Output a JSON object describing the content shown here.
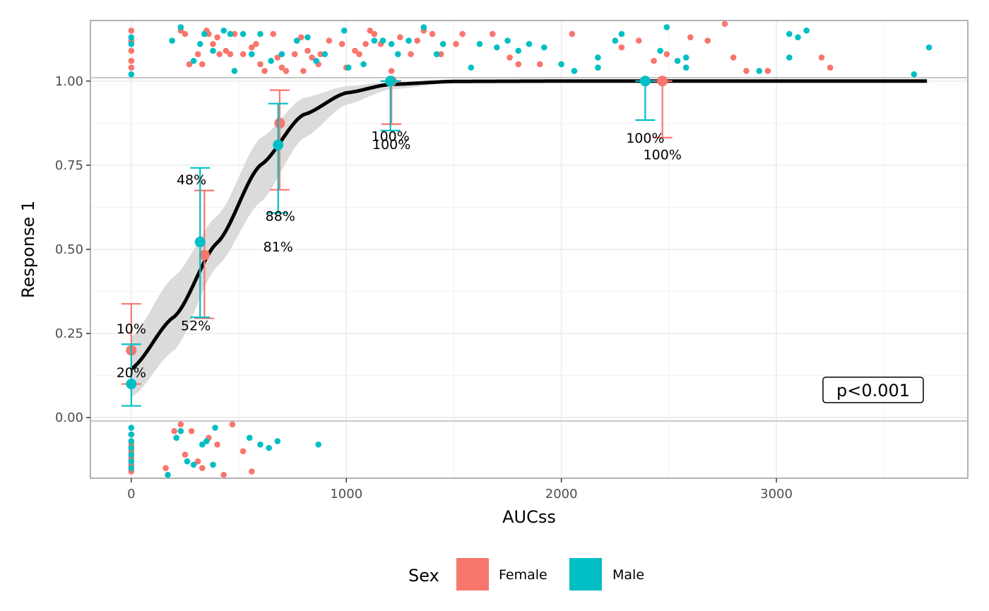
{
  "chart_data": {
    "type": "scatter",
    "xlabel": "AUCss",
    "ylabel": "Response 1",
    "x_ticks": [
      0,
      1000,
      2000,
      3000
    ],
    "x_tick_labels": [
      "0",
      "1000",
      "2000",
      "3000"
    ],
    "y_ticks": [
      0,
      0.25,
      0.5,
      0.75,
      1
    ],
    "y_tick_labels": [
      "0.00",
      "0.25",
      "0.50",
      "0.75",
      "1.00"
    ],
    "xlim": [
      -190,
      3890
    ],
    "ylim": [
      -0.18,
      1.18
    ],
    "grid": true,
    "legend": {
      "title": "Sex",
      "position": "bottom",
      "entries": [
        "Female",
        "Male"
      ]
    },
    "colors": {
      "Female": "#F8766D",
      "Male": "#00BFC4",
      "fit": "#000000",
      "band": "#D9D9D9"
    },
    "annotation": "p<0.001",
    "logistic_fit": {
      "x": [
        0,
        200,
        400,
        600,
        800,
        1000,
        1200,
        1500,
        2000,
        2500,
        3000,
        3700
      ],
      "y": [
        0.145,
        0.3,
        0.52,
        0.75,
        0.9,
        0.965,
        0.99,
        0.999,
        1,
        1,
        1,
        1
      ],
      "ci_low": [
        0.06,
        0.2,
        0.45,
        0.64,
        0.83,
        0.93,
        0.975,
        0.995,
        1,
        1,
        1,
        1
      ],
      "ci_high": [
        0.24,
        0.42,
        0.6,
        0.83,
        0.95,
        0.985,
        0.997,
        1,
        1,
        1,
        1,
        1
      ]
    },
    "bin_summaries": [
      {
        "sex": "Female",
        "x": 0,
        "y": 0.2,
        "ci": [
          0.1,
          0.338
        ],
        "label": "20%"
      },
      {
        "sex": "Male",
        "x": 0,
        "y": 0.1,
        "ci": [
          0.035,
          0.218
        ],
        "label": "10%"
      },
      {
        "sex": "Female",
        "x": 340,
        "y": 0.483,
        "ci": [
          0.295,
          0.675
        ],
        "label": "48%"
      },
      {
        "sex": "Male",
        "x": 320,
        "y": 0.522,
        "ci": [
          0.298,
          0.742
        ],
        "label": "52%"
      },
      {
        "sex": "Female",
        "x": 690,
        "y": 0.875,
        "ci": [
          0.677,
          0.973
        ],
        "label": "88%"
      },
      {
        "sex": "Male",
        "x": 683,
        "y": 0.81,
        "ci": [
          0.608,
          0.933
        ],
        "label": "81%"
      },
      {
        "sex": "Female",
        "x": 1210,
        "y": 1.0,
        "ci": [
          0.872,
          1.0
        ],
        "label": "100%"
      },
      {
        "sex": "Male",
        "x": 1205,
        "y": 1.0,
        "ci": [
          0.853,
          1.0
        ],
        "label": "100%"
      },
      {
        "sex": "Female",
        "x": 2470,
        "y": 1.0,
        "ci": [
          0.832,
          1.0
        ],
        "label": "100%"
      },
      {
        "sex": "Male",
        "x": 2390,
        "y": 1.0,
        "ci": [
          0.884,
          1.0
        ],
        "label": "100%"
      }
    ],
    "raw_points": {
      "responders": {
        "Female": [
          [
            0,
            1.04
          ],
          [
            0,
            1.06
          ],
          [
            0,
            1.09
          ],
          [
            0,
            1.12
          ],
          [
            0,
            1.15
          ],
          [
            230,
            1.15
          ],
          [
            250,
            1.14
          ],
          [
            270,
            1.05
          ],
          [
            310,
            1.08
          ],
          [
            330,
            1.05
          ],
          [
            350,
            1.15
          ],
          [
            360,
            1.14
          ],
          [
            380,
            1.11
          ],
          [
            400,
            1.13
          ],
          [
            410,
            1.08
          ],
          [
            440,
            1.09
          ],
          [
            460,
            1.08
          ],
          [
            480,
            1.14
          ],
          [
            520,
            1.08
          ],
          [
            560,
            1.1
          ],
          [
            580,
            1.11
          ],
          [
            600,
            1.05
          ],
          [
            620,
            1.03
          ],
          [
            660,
            1.14
          ],
          [
            680,
            1.07
          ],
          [
            700,
            1.04
          ],
          [
            720,
            1.03
          ],
          [
            760,
            1.08
          ],
          [
            790,
            1.13
          ],
          [
            800,
            1.03
          ],
          [
            820,
            1.09
          ],
          [
            840,
            1.07
          ],
          [
            870,
            1.05
          ],
          [
            880,
            1.08
          ],
          [
            920,
            1.12
          ],
          [
            980,
            1.11
          ],
          [
            1000,
            1.04
          ],
          [
            1040,
            1.09
          ],
          [
            1060,
            1.08
          ],
          [
            1090,
            1.11
          ],
          [
            1110,
            1.15
          ],
          [
            1130,
            1.14
          ],
          [
            1160,
            1.11
          ],
          [
            1210,
            1.03
          ],
          [
            1250,
            1.13
          ],
          [
            1300,
            1.08
          ],
          [
            1330,
            1.12
          ],
          [
            1360,
            1.15
          ],
          [
            1400,
            1.14
          ],
          [
            1440,
            1.08
          ],
          [
            1510,
            1.11
          ],
          [
            1540,
            1.14
          ],
          [
            1680,
            1.14
          ],
          [
            1760,
            1.07
          ],
          [
            1800,
            1.05
          ],
          [
            1900,
            1.05
          ],
          [
            2050,
            1.14
          ],
          [
            2280,
            1.1
          ],
          [
            2360,
            1.12
          ],
          [
            2430,
            1.06
          ],
          [
            2490,
            1.08
          ],
          [
            2600,
            1.13
          ],
          [
            2680,
            1.12
          ],
          [
            2760,
            1.17
          ],
          [
            2800,
            1.07
          ],
          [
            2860,
            1.03
          ],
          [
            2960,
            1.03
          ],
          [
            3210,
            1.07
          ],
          [
            3250,
            1.04
          ]
        ],
        "Male": [
          [
            0,
            1.02
          ],
          [
            0,
            1.11
          ],
          [
            0,
            1.13
          ],
          [
            190,
            1.12
          ],
          [
            230,
            1.16
          ],
          [
            290,
            1.06
          ],
          [
            320,
            1.11
          ],
          [
            340,
            1.14
          ],
          [
            380,
            1.09
          ],
          [
            430,
            1.15
          ],
          [
            460,
            1.14
          ],
          [
            480,
            1.03
          ],
          [
            520,
            1.14
          ],
          [
            560,
            1.08
          ],
          [
            600,
            1.14
          ],
          [
            650,
            1.06
          ],
          [
            700,
            1.08
          ],
          [
            770,
            1.12
          ],
          [
            820,
            1.13
          ],
          [
            860,
            1.06
          ],
          [
            900,
            1.08
          ],
          [
            990,
            1.15
          ],
          [
            1010,
            1.04
          ],
          [
            1080,
            1.05
          ],
          [
            1130,
            1.12
          ],
          [
            1170,
            1.12
          ],
          [
            1210,
            1.11
          ],
          [
            1240,
            1.08
          ],
          [
            1290,
            1.12
          ],
          [
            1360,
            1.16
          ],
          [
            1420,
            1.08
          ],
          [
            1450,
            1.11
          ],
          [
            1580,
            1.04
          ],
          [
            1620,
            1.11
          ],
          [
            1700,
            1.1
          ],
          [
            1750,
            1.12
          ],
          [
            1800,
            1.09
          ],
          [
            1850,
            1.11
          ],
          [
            1920,
            1.1
          ],
          [
            2000,
            1.05
          ],
          [
            2060,
            1.03
          ],
          [
            2170,
            1.07
          ],
          [
            2170,
            1.04
          ],
          [
            2250,
            1.12
          ],
          [
            2280,
            1.14
          ],
          [
            2460,
            1.09
          ],
          [
            2490,
            1.16
          ],
          [
            2540,
            1.06
          ],
          [
            2580,
            1.04
          ],
          [
            2580,
            1.07
          ],
          [
            2920,
            1.03
          ],
          [
            3060,
            1.07
          ],
          [
            3060,
            1.14
          ],
          [
            3100,
            1.13
          ],
          [
            3140,
            1.15
          ],
          [
            3640,
            1.02
          ],
          [
            3710,
            1.1
          ]
        ]
      },
      "non_responders": {
        "Female": [
          [
            0,
            -0.16
          ],
          [
            0,
            -0.14
          ],
          [
            0,
            -0.12
          ],
          [
            0,
            -0.1
          ],
          [
            0,
            -0.08
          ],
          [
            0,
            -0.05
          ],
          [
            160,
            -0.15
          ],
          [
            200,
            -0.04
          ],
          [
            230,
            -0.02
          ],
          [
            250,
            -0.11
          ],
          [
            280,
            -0.04
          ],
          [
            310,
            -0.13
          ],
          [
            330,
            -0.15
          ],
          [
            360,
            -0.06
          ],
          [
            400,
            -0.08
          ],
          [
            430,
            -0.17
          ],
          [
            470,
            -0.02
          ],
          [
            520,
            -0.1
          ],
          [
            560,
            -0.16
          ]
        ],
        "Male": [
          [
            0,
            -0.15
          ],
          [
            0,
            -0.13
          ],
          [
            0,
            -0.11
          ],
          [
            0,
            -0.09
          ],
          [
            0,
            -0.07
          ],
          [
            0,
            -0.05
          ],
          [
            0,
            -0.03
          ],
          [
            170,
            -0.17
          ],
          [
            210,
            -0.06
          ],
          [
            230,
            -0.04
          ],
          [
            260,
            -0.13
          ],
          [
            290,
            -0.14
          ],
          [
            330,
            -0.08
          ],
          [
            350,
            -0.07
          ],
          [
            380,
            -0.14
          ],
          [
            390,
            -0.03
          ],
          [
            550,
            -0.06
          ],
          [
            600,
            -0.08
          ],
          [
            640,
            -0.09
          ],
          [
            680,
            -0.07
          ],
          [
            870,
            -0.08
          ]
        ]
      }
    }
  }
}
